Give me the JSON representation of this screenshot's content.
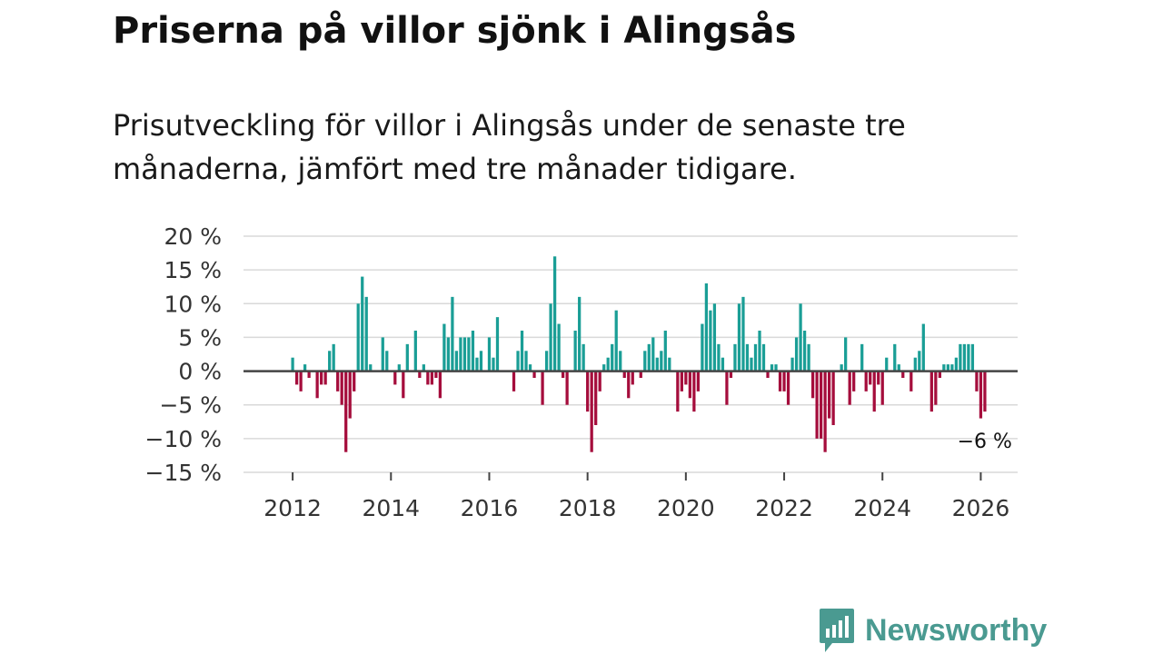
{
  "header": {
    "title": "Priserna på villor sjönk i Alingsås",
    "subtitle": "Prisutveckling för villor i Alingsås under de senaste tre månaderna, jämfört med tre månader tidigare."
  },
  "brand": {
    "name": "Newsworthy"
  },
  "colors": {
    "positive": "#1a9e96",
    "negative": "#a50d3c",
    "grid": "#d9d9d9",
    "zero": "#444444",
    "logo": "#4a9a91"
  },
  "chart_data": {
    "type": "bar",
    "title": "Priserna på villor sjönk i Alingsås",
    "xlabel": "",
    "ylabel": "",
    "ylim": [
      -15,
      20
    ],
    "xlim": [
      2011.0,
      2026.75
    ],
    "y_ticks": [
      20,
      15,
      10,
      5,
      0,
      -5,
      -10,
      -15
    ],
    "y_tick_labels": [
      "20 %",
      "15 %",
      "10 %",
      "5 %",
      "0 %",
      "−5 %",
      "−10 %",
      "−15 %"
    ],
    "x_ticks": [
      2012,
      2014,
      2016,
      2018,
      2020,
      2022,
      2024,
      2026
    ],
    "x_tick_labels": [
      "2012",
      "2014",
      "2016",
      "2018",
      "2020",
      "2022",
      "2024",
      "2026"
    ],
    "start": "2012-01",
    "frequency": "monthly",
    "unit": "%",
    "values": [
      2,
      -2,
      -3,
      1,
      -1,
      0,
      -4,
      -2,
      -2,
      3,
      4,
      -3,
      -5,
      -12,
      -7,
      -3,
      10,
      14,
      11,
      1,
      0,
      0,
      5,
      3,
      0,
      -2,
      1,
      -4,
      4,
      0,
      6,
      -1,
      1,
      -2,
      -2,
      -1,
      -4,
      7,
      5,
      11,
      3,
      5,
      5,
      5,
      6,
      2,
      3,
      0,
      5,
      2,
      8,
      0,
      0,
      0,
      -3,
      3,
      6,
      3,
      1,
      -1,
      0,
      -5,
      3,
      10,
      17,
      7,
      -1,
      -5,
      0,
      6,
      11,
      4,
      -6,
      -12,
      -8,
      -3,
      1,
      2,
      4,
      9,
      3,
      -1,
      -4,
      -2,
      0,
      -1,
      3,
      4,
      5,
      2,
      3,
      6,
      2,
      0,
      -6,
      -3,
      -2,
      -4,
      -6,
      -3,
      7,
      13,
      9,
      10,
      4,
      2,
      -5,
      -1,
      4,
      10,
      11,
      4,
      2,
      4,
      6,
      4,
      -1,
      1,
      1,
      -3,
      -3,
      -5,
      2,
      5,
      10,
      6,
      4,
      -4,
      -10,
      -10,
      -12,
      -7,
      -8,
      0,
      1,
      5,
      -5,
      -3,
      0,
      4,
      -3,
      -2,
      -6,
      -2,
      -5,
      2,
      0,
      4,
      1,
      -1,
      0,
      -3,
      2,
      3,
      7,
      0,
      -6,
      -5,
      -1,
      1,
      1,
      1,
      2,
      4,
      4,
      4,
      4,
      -3,
      -7,
      -6
    ],
    "annotation": {
      "text": "−6 %",
      "target": "last"
    }
  }
}
